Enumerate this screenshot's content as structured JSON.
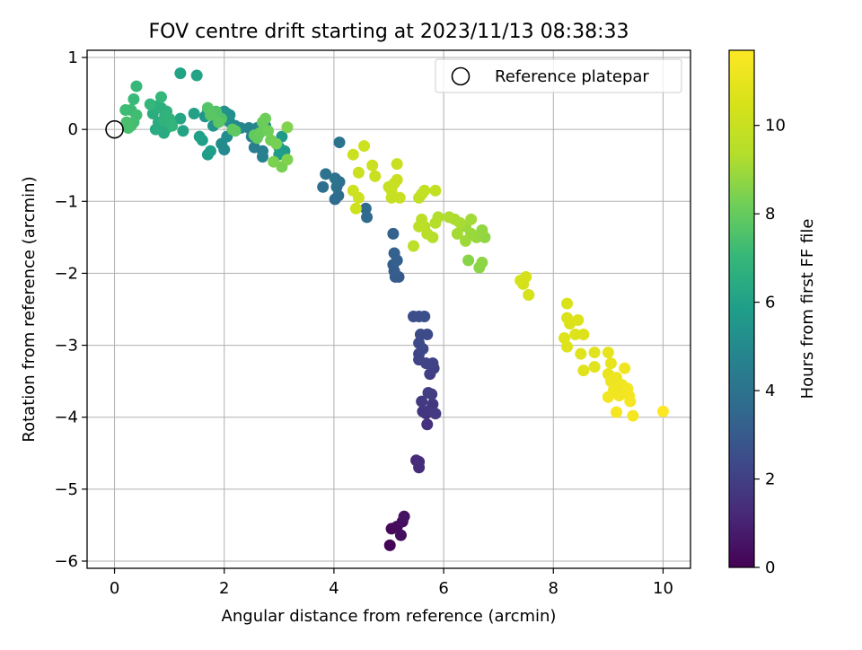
{
  "chart_data": {
    "type": "scatter",
    "title": "FOV centre drift starting at 2023/11/13 08:38:33",
    "xlabel": "Angular distance from reference (arcmin)",
    "ylabel": "Rotation from reference (arcmin)",
    "xlim": [
      -0.5,
      10.5
    ],
    "ylim": [
      -6.1,
      1.1
    ],
    "xticks": [
      0,
      2,
      4,
      6,
      8,
      10
    ],
    "yticks": [
      -6,
      -5,
      -4,
      -3,
      -2,
      -1,
      0,
      1
    ],
    "grid": true,
    "legend": {
      "placement": "top-right",
      "entries": [
        {
          "label": "Reference platepar",
          "marker": "open-circle"
        }
      ]
    },
    "reference_point": {
      "x": 0,
      "y": 0
    },
    "colorbar": {
      "label": "Hours from first FF file",
      "range": [
        0,
        11.7
      ],
      "ticks": [
        0,
        2,
        4,
        6,
        8,
        10
      ],
      "colormap": "viridis"
    },
    "points": [
      {
        "x": 5.02,
        "y": -5.78,
        "h": 0.1
      },
      {
        "x": 5.05,
        "y": -5.55,
        "h": 0.2
      },
      {
        "x": 5.15,
        "y": -5.52,
        "h": 0.3
      },
      {
        "x": 5.22,
        "y": -5.64,
        "h": 0.35
      },
      {
        "x": 5.25,
        "y": -5.45,
        "h": 0.4
      },
      {
        "x": 5.28,
        "y": -5.38,
        "h": 0.5
      },
      {
        "x": 5.5,
        "y": -4.6,
        "h": 1.2
      },
      {
        "x": 5.55,
        "y": -4.7,
        "h": 1.3
      },
      {
        "x": 5.55,
        "y": -4.62,
        "h": 1.35
      },
      {
        "x": 5.7,
        "y": -4.1,
        "h": 1.5
      },
      {
        "x": 5.68,
        "y": -3.95,
        "h": 1.6
      },
      {
        "x": 5.62,
        "y": -3.92,
        "h": 1.65
      },
      {
        "x": 5.75,
        "y": -3.9,
        "h": 1.7
      },
      {
        "x": 5.8,
        "y": -3.82,
        "h": 1.75
      },
      {
        "x": 5.85,
        "y": -3.95,
        "h": 1.8
      },
      {
        "x": 5.6,
        "y": -3.78,
        "h": 1.85
      },
      {
        "x": 5.78,
        "y": -3.68,
        "h": 1.9
      },
      {
        "x": 5.72,
        "y": -3.66,
        "h": 1.95
      },
      {
        "x": 5.75,
        "y": -3.4,
        "h": 2.0
      },
      {
        "x": 5.82,
        "y": -3.32,
        "h": 2.05
      },
      {
        "x": 5.8,
        "y": -3.25,
        "h": 2.1
      },
      {
        "x": 5.68,
        "y": -3.25,
        "h": 2.15
      },
      {
        "x": 5.55,
        "y": -3.2,
        "h": 2.2
      },
      {
        "x": 5.55,
        "y": -3.12,
        "h": 2.25
      },
      {
        "x": 5.62,
        "y": -3.05,
        "h": 2.3
      },
      {
        "x": 5.55,
        "y": -2.97,
        "h": 2.35
      },
      {
        "x": 5.7,
        "y": -2.85,
        "h": 2.4
      },
      {
        "x": 5.58,
        "y": -2.85,
        "h": 2.45
      },
      {
        "x": 5.45,
        "y": -2.6,
        "h": 2.5
      },
      {
        "x": 5.55,
        "y": -2.6,
        "h": 2.55
      },
      {
        "x": 5.65,
        "y": -2.6,
        "h": 2.6
      },
      {
        "x": 5.18,
        "y": -2.05,
        "h": 3.0
      },
      {
        "x": 5.12,
        "y": -2.05,
        "h": 3.05
      },
      {
        "x": 5.1,
        "y": -1.97,
        "h": 3.1
      },
      {
        "x": 5.08,
        "y": -1.88,
        "h": 3.15
      },
      {
        "x": 5.15,
        "y": -1.82,
        "h": 3.2
      },
      {
        "x": 5.1,
        "y": -1.72,
        "h": 3.25
      },
      {
        "x": 5.08,
        "y": -1.45,
        "h": 3.3
      },
      {
        "x": 4.6,
        "y": -1.22,
        "h": 3.6
      },
      {
        "x": 4.58,
        "y": -1.1,
        "h": 3.65
      },
      {
        "x": 4.02,
        "y": -0.97,
        "h": 3.7
      },
      {
        "x": 4.08,
        "y": -0.92,
        "h": 3.75
      },
      {
        "x": 3.8,
        "y": -0.8,
        "h": 3.8
      },
      {
        "x": 4.05,
        "y": -0.8,
        "h": 3.85
      },
      {
        "x": 4.1,
        "y": -0.73,
        "h": 3.9
      },
      {
        "x": 3.85,
        "y": -0.62,
        "h": 3.95
      },
      {
        "x": 4.02,
        "y": -0.68,
        "h": 4.0
      },
      {
        "x": 4.1,
        "y": -0.18,
        "h": 4.05
      },
      {
        "x": 2.55,
        "y": -0.25,
        "h": 4.5
      },
      {
        "x": 2.7,
        "y": -0.3,
        "h": 4.55
      },
      {
        "x": 2.7,
        "y": -0.38,
        "h": 4.6
      },
      {
        "x": 2.5,
        "y": -0.1,
        "h": 4.7
      },
      {
        "x": 2.45,
        "y": 0.02,
        "h": 4.75
      },
      {
        "x": 2.6,
        "y": 0.02,
        "h": 4.8
      },
      {
        "x": 2.75,
        "y": 0.05,
        "h": 4.85
      },
      {
        "x": 2.3,
        "y": 0.02,
        "h": 4.9
      },
      {
        "x": 2.2,
        "y": 0.05,
        "h": 4.95
      },
      {
        "x": 2.0,
        "y": -0.28,
        "h": 5.0
      },
      {
        "x": 1.95,
        "y": -0.2,
        "h": 5.05
      },
      {
        "x": 2.05,
        "y": -0.1,
        "h": 5.1
      },
      {
        "x": 2.1,
        "y": 0.1,
        "h": 5.15
      },
      {
        "x": 2.0,
        "y": 0.15,
        "h": 5.2
      },
      {
        "x": 2.05,
        "y": 0.22,
        "h": 5.25
      },
      {
        "x": 2.1,
        "y": 0.2,
        "h": 5.3
      },
      {
        "x": 2.0,
        "y": 0.25,
        "h": 5.35
      },
      {
        "x": 1.8,
        "y": 0.05,
        "h": 5.4
      },
      {
        "x": 1.7,
        "y": 0.25,
        "h": 5.45
      },
      {
        "x": 1.65,
        "y": 0.18,
        "h": 5.5
      },
      {
        "x": 3.05,
        "y": -0.1,
        "h": 5.6
      },
      {
        "x": 3.0,
        "y": -0.25,
        "h": 5.65
      },
      {
        "x": 3.1,
        "y": -0.3,
        "h": 5.7
      },
      {
        "x": 3.0,
        "y": -0.35,
        "h": 5.75
      },
      {
        "x": 1.7,
        "y": -0.35,
        "h": 5.8
      },
      {
        "x": 1.75,
        "y": -0.3,
        "h": 5.85
      },
      {
        "x": 1.6,
        "y": -0.15,
        "h": 5.9
      },
      {
        "x": 1.55,
        "y": -0.1,
        "h": 5.95
      },
      {
        "x": 1.45,
        "y": 0.22,
        "h": 6.0
      },
      {
        "x": 1.2,
        "y": 0.78,
        "h": 6.05
      },
      {
        "x": 1.5,
        "y": 0.75,
        "h": 6.1
      },
      {
        "x": 1.25,
        "y": -0.02,
        "h": 6.15
      },
      {
        "x": 1.2,
        "y": 0.15,
        "h": 6.2
      },
      {
        "x": 0.95,
        "y": 0.05,
        "h": 6.3
      },
      {
        "x": 0.9,
        "y": -0.05,
        "h": 6.35
      },
      {
        "x": 0.95,
        "y": 0.02,
        "h": 6.4
      },
      {
        "x": 0.75,
        "y": 0.0,
        "h": 6.45
      },
      {
        "x": 0.8,
        "y": 0.1,
        "h": 6.5
      },
      {
        "x": 0.7,
        "y": 0.22,
        "h": 6.55
      },
      {
        "x": 0.75,
        "y": 0.32,
        "h": 6.6
      },
      {
        "x": 0.85,
        "y": 0.3,
        "h": 6.65
      },
      {
        "x": 0.95,
        "y": 0.25,
        "h": 6.7
      },
      {
        "x": 0.92,
        "y": 0.2,
        "h": 6.75
      },
      {
        "x": 0.9,
        "y": 0.12,
        "h": 6.8
      },
      {
        "x": 1.0,
        "y": 0.15,
        "h": 6.85
      },
      {
        "x": 1.05,
        "y": 0.05,
        "h": 6.9
      },
      {
        "x": 0.65,
        "y": 0.35,
        "h": 6.95
      },
      {
        "x": 0.85,
        "y": 0.45,
        "h": 7.0
      },
      {
        "x": 0.4,
        "y": 0.6,
        "h": 7.05
      },
      {
        "x": 0.35,
        "y": 0.42,
        "h": 7.1
      },
      {
        "x": 0.3,
        "y": 0.27,
        "h": 7.15
      },
      {
        "x": 0.2,
        "y": 0.27,
        "h": 7.2
      },
      {
        "x": 0.4,
        "y": 0.2,
        "h": 7.25
      },
      {
        "x": 0.35,
        "y": 0.1,
        "h": 7.3
      },
      {
        "x": 0.3,
        "y": 0.05,
        "h": 7.35
      },
      {
        "x": 0.25,
        "y": 0.02,
        "h": 7.4
      },
      {
        "x": 0.22,
        "y": 0.1,
        "h": 7.45
      },
      {
        "x": 1.95,
        "y": 0.15,
        "h": 7.6
      },
      {
        "x": 1.85,
        "y": 0.25,
        "h": 7.65
      },
      {
        "x": 1.7,
        "y": 0.3,
        "h": 7.7
      },
      {
        "x": 1.75,
        "y": 0.2,
        "h": 7.75
      },
      {
        "x": 1.9,
        "y": 0.1,
        "h": 7.8
      },
      {
        "x": 2.15,
        "y": 0.0,
        "h": 7.85
      },
      {
        "x": 2.2,
        "y": -0.02,
        "h": 7.9
      },
      {
        "x": 2.55,
        "y": -0.08,
        "h": 7.95
      },
      {
        "x": 2.6,
        "y": -0.12,
        "h": 8.0
      },
      {
        "x": 2.65,
        "y": -0.05,
        "h": 8.05
      },
      {
        "x": 2.7,
        "y": 0.1,
        "h": 8.1
      },
      {
        "x": 2.75,
        "y": 0.15,
        "h": 8.15
      },
      {
        "x": 2.8,
        "y": -0.02,
        "h": 8.2
      },
      {
        "x": 2.85,
        "y": -0.15,
        "h": 8.25
      },
      {
        "x": 2.95,
        "y": -0.2,
        "h": 8.3
      },
      {
        "x": 3.05,
        "y": -0.52,
        "h": 8.35
      },
      {
        "x": 2.9,
        "y": -0.45,
        "h": 8.4
      },
      {
        "x": 3.15,
        "y": -0.42,
        "h": 8.45
      },
      {
        "x": 3.15,
        "y": 0.03,
        "h": 8.5
      },
      {
        "x": 6.45,
        "y": -1.82,
        "h": 8.6
      },
      {
        "x": 6.65,
        "y": -1.92,
        "h": 8.65
      },
      {
        "x": 6.7,
        "y": -1.85,
        "h": 8.7
      },
      {
        "x": 6.75,
        "y": -1.5,
        "h": 8.75
      },
      {
        "x": 6.7,
        "y": -1.4,
        "h": 8.8
      },
      {
        "x": 6.6,
        "y": -1.5,
        "h": 8.85
      },
      {
        "x": 6.5,
        "y": -1.45,
        "h": 8.9
      },
      {
        "x": 6.4,
        "y": -1.35,
        "h": 8.95
      },
      {
        "x": 6.4,
        "y": -1.55,
        "h": 9.0
      },
      {
        "x": 6.5,
        "y": -1.25,
        "h": 9.05
      },
      {
        "x": 6.25,
        "y": -1.45,
        "h": 9.1
      },
      {
        "x": 6.3,
        "y": -1.3,
        "h": 9.15
      },
      {
        "x": 6.2,
        "y": -1.25,
        "h": 9.2
      },
      {
        "x": 6.1,
        "y": -1.22,
        "h": 9.25
      },
      {
        "x": 5.9,
        "y": -1.22,
        "h": 9.3
      },
      {
        "x": 5.85,
        "y": -1.3,
        "h": 9.35
      },
      {
        "x": 5.8,
        "y": -1.5,
        "h": 9.4
      },
      {
        "x": 5.7,
        "y": -1.45,
        "h": 9.45
      },
      {
        "x": 5.65,
        "y": -1.35,
        "h": 9.5
      },
      {
        "x": 5.6,
        "y": -1.25,
        "h": 9.55
      },
      {
        "x": 5.55,
        "y": -1.35,
        "h": 9.6
      },
      {
        "x": 5.45,
        "y": -1.62,
        "h": 9.65
      },
      {
        "x": 5.6,
        "y": -0.9,
        "h": 9.7
      },
      {
        "x": 5.55,
        "y": -0.95,
        "h": 9.75
      },
      {
        "x": 5.65,
        "y": -0.85,
        "h": 9.8
      },
      {
        "x": 5.85,
        "y": -0.85,
        "h": 9.85
      },
      {
        "x": 5.05,
        "y": -0.95,
        "h": 9.9
      },
      {
        "x": 5.05,
        "y": -0.85,
        "h": 9.92
      },
      {
        "x": 5.0,
        "y": -0.8,
        "h": 9.94
      },
      {
        "x": 5.1,
        "y": -0.75,
        "h": 9.96
      },
      {
        "x": 5.2,
        "y": -0.95,
        "h": 9.98
      },
      {
        "x": 5.15,
        "y": -0.7,
        "h": 10.0
      },
      {
        "x": 5.15,
        "y": -0.48,
        "h": 10.02
      },
      {
        "x": 4.75,
        "y": -0.65,
        "h": 10.04
      },
      {
        "x": 4.7,
        "y": -0.5,
        "h": 10.06
      },
      {
        "x": 4.45,
        "y": -0.6,
        "h": 10.08
      },
      {
        "x": 4.35,
        "y": -0.35,
        "h": 10.1
      },
      {
        "x": 4.55,
        "y": -0.23,
        "h": 10.12
      },
      {
        "x": 4.35,
        "y": -0.85,
        "h": 10.14
      },
      {
        "x": 4.45,
        "y": -0.95,
        "h": 10.16
      },
      {
        "x": 4.4,
        "y": -1.1,
        "h": 10.18
      },
      {
        "x": 7.4,
        "y": -2.1,
        "h": 10.4
      },
      {
        "x": 7.45,
        "y": -2.15,
        "h": 10.42
      },
      {
        "x": 7.5,
        "y": -2.05,
        "h": 10.44
      },
      {
        "x": 7.55,
        "y": -2.3,
        "h": 10.46
      },
      {
        "x": 8.25,
        "y": -2.42,
        "h": 10.6
      },
      {
        "x": 8.25,
        "y": -2.62,
        "h": 10.62
      },
      {
        "x": 8.3,
        "y": -2.7,
        "h": 10.64
      },
      {
        "x": 8.45,
        "y": -2.65,
        "h": 10.66
      },
      {
        "x": 8.55,
        "y": -2.85,
        "h": 10.68
      },
      {
        "x": 8.4,
        "y": -2.85,
        "h": 10.7
      },
      {
        "x": 8.2,
        "y": -2.9,
        "h": 10.72
      },
      {
        "x": 8.25,
        "y": -3.02,
        "h": 10.74
      },
      {
        "x": 8.5,
        "y": -3.12,
        "h": 10.76
      },
      {
        "x": 8.55,
        "y": -3.35,
        "h": 10.78
      },
      {
        "x": 8.75,
        "y": -3.3,
        "h": 10.8
      },
      {
        "x": 8.75,
        "y": -3.1,
        "h": 10.82
      },
      {
        "x": 9.0,
        "y": -3.1,
        "h": 11.0
      },
      {
        "x": 9.05,
        "y": -3.25,
        "h": 11.05
      },
      {
        "x": 9.0,
        "y": -3.4,
        "h": 11.1
      },
      {
        "x": 9.05,
        "y": -3.5,
        "h": 11.15
      },
      {
        "x": 9.15,
        "y": -3.45,
        "h": 11.2
      },
      {
        "x": 9.25,
        "y": -3.55,
        "h": 11.25
      },
      {
        "x": 9.3,
        "y": -3.32,
        "h": 11.3
      },
      {
        "x": 9.1,
        "y": -3.62,
        "h": 11.32
      },
      {
        "x": 9.0,
        "y": -3.72,
        "h": 11.34
      },
      {
        "x": 9.2,
        "y": -3.7,
        "h": 11.36
      },
      {
        "x": 9.35,
        "y": -3.6,
        "h": 11.38
      },
      {
        "x": 9.38,
        "y": -3.7,
        "h": 11.4
      },
      {
        "x": 9.4,
        "y": -3.78,
        "h": 11.42
      },
      {
        "x": 9.15,
        "y": -3.93,
        "h": 11.44
      },
      {
        "x": 9.45,
        "y": -3.98,
        "h": 11.46
      },
      {
        "x": 10.0,
        "y": -3.92,
        "h": 11.7
      }
    ]
  }
}
